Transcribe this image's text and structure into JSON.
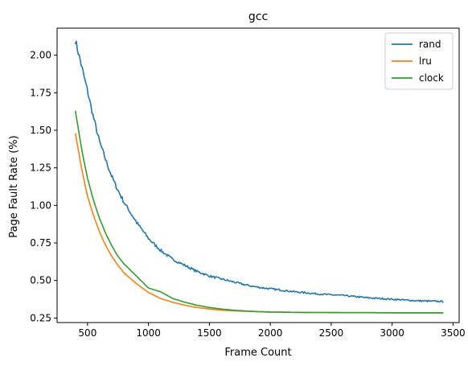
{
  "chart_data": {
    "type": "line",
    "title": "gcc",
    "xlabel": "Frame Count",
    "ylabel": "Page Fault Rate (%)",
    "xlim": [
      250,
      3550
    ],
    "ylim": [
      0.22,
      2.18
    ],
    "xticks": [
      500,
      1000,
      1500,
      2000,
      2500,
      3000,
      3500
    ],
    "xtick_labels": [
      "500",
      "1000",
      "1500",
      "2000",
      "2500",
      "3000",
      "3500"
    ],
    "yticks": [
      0.25,
      0.5,
      0.75,
      1.0,
      1.25,
      1.5,
      1.75,
      2.0
    ],
    "ytick_labels": [
      "0.25",
      "0.50",
      "0.75",
      "1.00",
      "1.25",
      "1.50",
      "1.75",
      "2.00"
    ],
    "grid": false,
    "legend_position": "top-right",
    "x": [
      400,
      450,
      500,
      550,
      600,
      650,
      700,
      750,
      800,
      900,
      1000,
      1100,
      1200,
      1300,
      1400,
      1500,
      1600,
      1700,
      1800,
      1900,
      2000,
      2200,
      2400,
      2600,
      2800,
      3000,
      3200,
      3420
    ],
    "series": [
      {
        "name": "rand",
        "color": "#1f77b4",
        "values": [
          2.1,
          1.93,
          1.76,
          1.58,
          1.42,
          1.3,
          1.19,
          1.1,
          1.02,
          0.89,
          0.78,
          0.7,
          0.64,
          0.6,
          0.56,
          0.53,
          0.51,
          0.49,
          0.47,
          0.455,
          0.445,
          0.425,
          0.41,
          0.4,
          0.385,
          0.375,
          0.365,
          0.36
        ]
      },
      {
        "name": "lru",
        "color": "#ff7f0e",
        "values": [
          1.48,
          1.25,
          1.06,
          0.93,
          0.82,
          0.73,
          0.66,
          0.6,
          0.55,
          0.48,
          0.42,
          0.38,
          0.355,
          0.335,
          0.32,
          0.31,
          0.302,
          0.298,
          0.295,
          0.292,
          0.29,
          0.288,
          0.287,
          0.286,
          0.286,
          0.285,
          0.285,
          0.285
        ]
      },
      {
        "name": "clock",
        "color": "#2ca02c",
        "values": [
          1.63,
          1.38,
          1.18,
          1.03,
          0.91,
          0.81,
          0.73,
          0.66,
          0.61,
          0.53,
          0.45,
          0.425,
          0.38,
          0.355,
          0.335,
          0.32,
          0.31,
          0.302,
          0.297,
          0.293,
          0.29,
          0.288,
          0.287,
          0.286,
          0.286,
          0.285,
          0.285,
          0.285
        ]
      }
    ]
  }
}
